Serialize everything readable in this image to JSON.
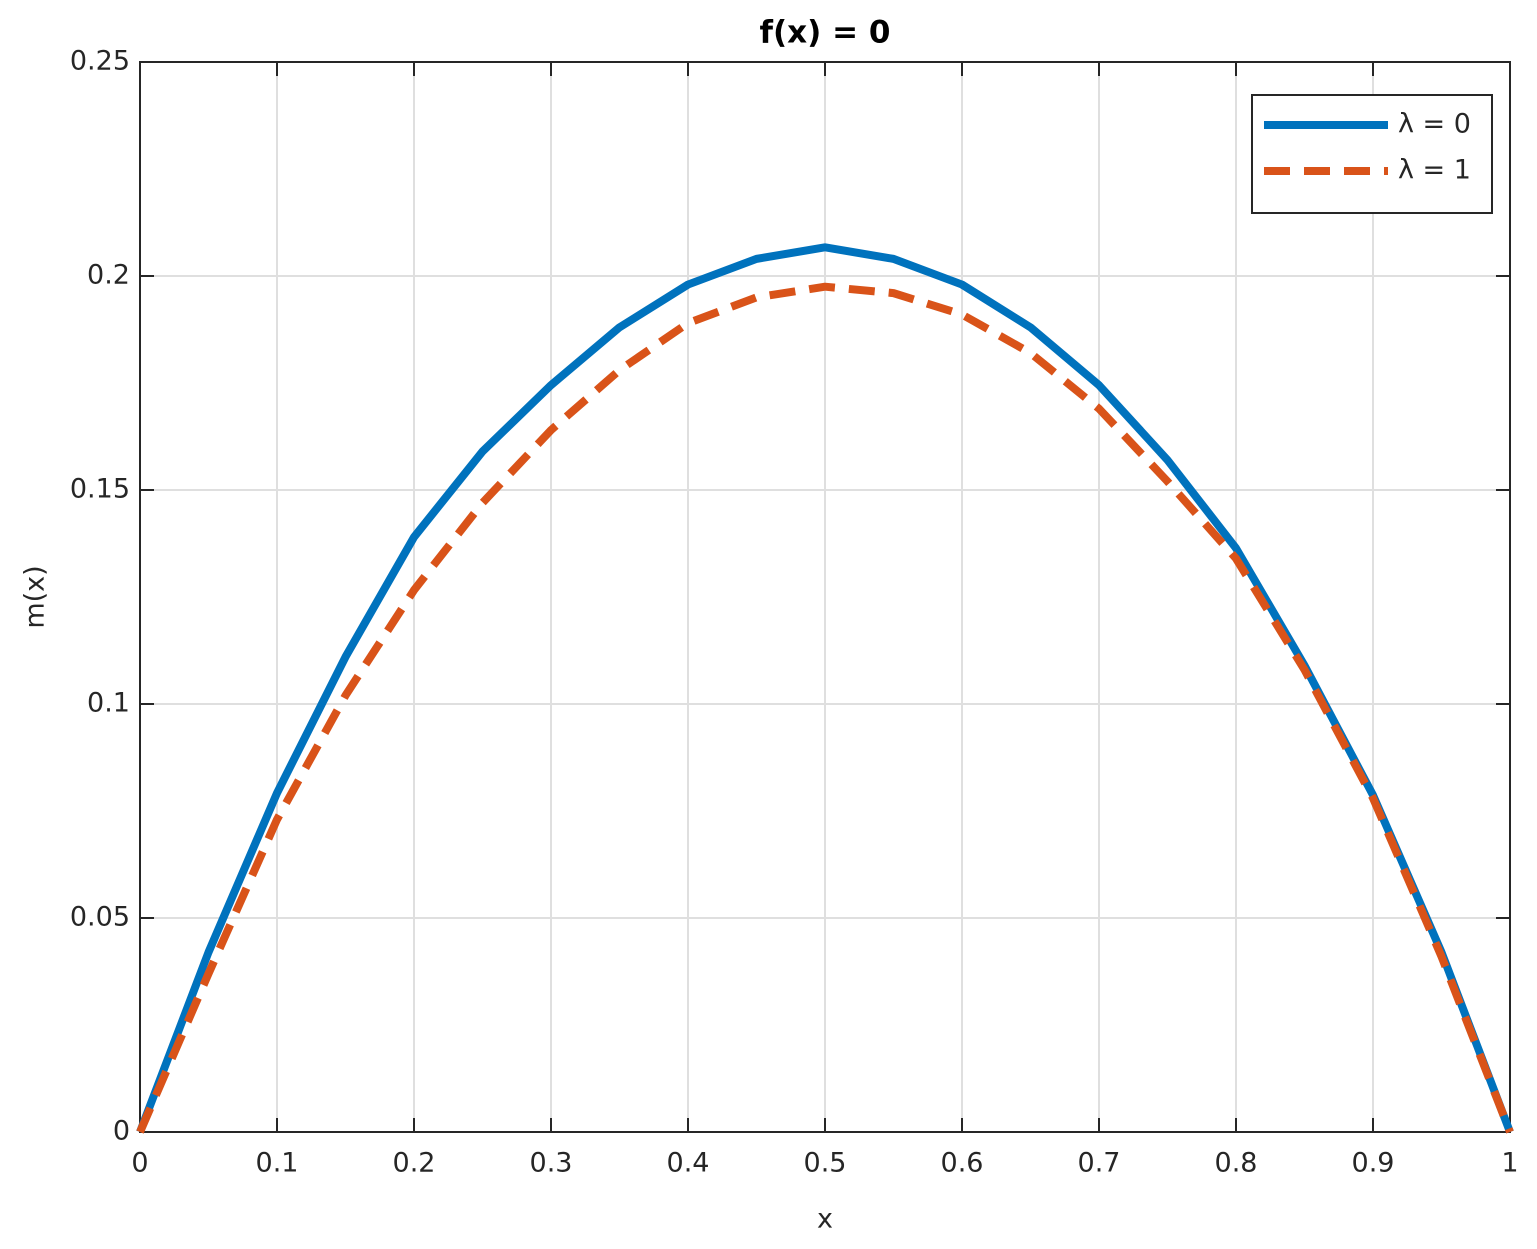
{
  "chart_data": {
    "type": "line",
    "title": "f(x) = 0",
    "x_label": "x",
    "y_label": "m(x)",
    "x": [
      0,
      0.05,
      0.1,
      0.15,
      0.2,
      0.25,
      0.3,
      0.35,
      0.4,
      0.45,
      0.5,
      0.55,
      0.6,
      0.65,
      0.7,
      0.75,
      0.8,
      0.85,
      0.9,
      0.95,
      1
    ],
    "series": [
      {
        "name": "λ = 0",
        "color": "#0072BD",
        "dash": false,
        "values": [
          0,
          0.042,
          0.0792,
          0.111,
          0.139,
          0.159,
          0.1745,
          0.188,
          0.198,
          0.204,
          0.2067,
          0.204,
          0.198,
          0.188,
          0.1745,
          0.157,
          0.1364,
          0.109,
          0.0787,
          0.042,
          0
        ]
      },
      {
        "name": "λ = 1",
        "color": "#D95319",
        "dash": true,
        "values": [
          0,
          0.037,
          0.073,
          0.102,
          0.1266,
          0.147,
          0.164,
          0.178,
          0.189,
          0.195,
          0.1975,
          0.196,
          0.191,
          0.182,
          0.169,
          0.152,
          0.134,
          0.108,
          0.078,
          0.041,
          0
        ]
      }
    ],
    "xlim": [
      0,
      1
    ],
    "ylim": [
      0,
      0.25
    ],
    "xticks": [
      0,
      0.1,
      0.2,
      0.3,
      0.4,
      0.5,
      0.6,
      0.7,
      0.8,
      0.9,
      1
    ],
    "yticks": [
      0,
      0.05,
      0.1,
      0.15,
      0.2,
      0.25
    ],
    "grid": true,
    "legend": "top-right"
  }
}
